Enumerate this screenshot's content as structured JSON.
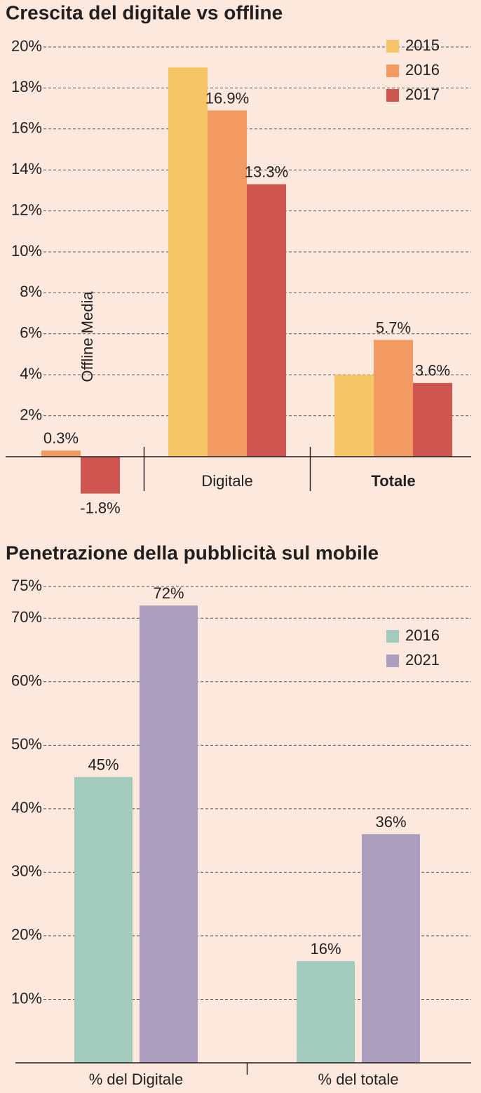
{
  "chart_data": [
    {
      "type": "bar",
      "title": "Crescita del digitale vs offline",
      "categories": [
        "Offline Media",
        "Digitale",
        "Totale"
      ],
      "series": [
        {
          "name": "2015",
          "color": "#f5c566",
          "values": [
            null,
            19,
            4
          ]
        },
        {
          "name": "2016",
          "color": "#f39a62",
          "values": [
            0.3,
            16.9,
            5.7
          ],
          "value_labels": [
            "0.3%",
            "16.9%",
            "5.7%"
          ]
        },
        {
          "name": "2017",
          "color": "#cf5650",
          "values": [
            -1.8,
            13.3,
            3.6
          ],
          "value_labels": [
            "-1.8%",
            "13.3%",
            "3.6%"
          ]
        }
      ],
      "ylim": [
        -2,
        20
      ],
      "yticks": [
        {
          "value": 2,
          "label": "2%"
        },
        {
          "value": 4,
          "label": "4%"
        },
        {
          "value": 6,
          "label": "6%"
        },
        {
          "value": 8,
          "label": "8%"
        },
        {
          "value": 10,
          "label": "10%"
        },
        {
          "value": 12,
          "label": "12%"
        },
        {
          "value": 14,
          "label": "14%"
        },
        {
          "value": 16,
          "label": "16%"
        },
        {
          "value": 18,
          "label": "18%"
        },
        {
          "value": 20,
          "label": "20%"
        }
      ],
      "grid": true,
      "legend": "top-right"
    },
    {
      "type": "bar",
      "title": "Penetrazione della pubblicità sul mobile",
      "categories": [
        "% del Digitale",
        "% del totale"
      ],
      "series": [
        {
          "name": "2016",
          "color": "#a2cbbd",
          "values": [
            45,
            16
          ],
          "value_labels": [
            "45%",
            "16%"
          ]
        },
        {
          "name": "2021",
          "color": "#ab9dbe",
          "values": [
            72,
            36
          ],
          "value_labels": [
            "72%",
            "36%"
          ]
        }
      ],
      "ylim": [
        0,
        75
      ],
      "yticks": [
        {
          "value": 10,
          "label": "10%"
        },
        {
          "value": 20,
          "label": "20%"
        },
        {
          "value": 30,
          "label": "30%"
        },
        {
          "value": 40,
          "label": "40%"
        },
        {
          "value": 50,
          "label": "50%"
        },
        {
          "value": 60,
          "label": "60%"
        },
        {
          "value": 70,
          "label": "70%"
        },
        {
          "value": 75,
          "label": "75%"
        }
      ],
      "grid": true,
      "legend": "top-right"
    }
  ]
}
